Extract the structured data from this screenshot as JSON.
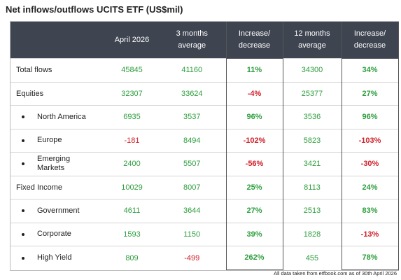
{
  "title": "Net inflows/outflows UCITS ETF (US$mil)",
  "table": {
    "header": [
      "April 2026",
      "3 months average",
      "Increase/ decrease",
      "12 months average",
      "Increase/ decrease"
    ],
    "rows": [
      {
        "label": "Total flows",
        "values": [
          45845,
          41160,
          "11%",
          34300,
          "34%"
        ]
      },
      {
        "label": "Equities",
        "values": [
          32307,
          33624,
          "-4%",
          25377,
          "27%"
        ],
        "children": [
          {
            "label": "North America",
            "values": [
              6935,
              3537,
              "96%",
              3536,
              "96%"
            ]
          },
          {
            "label": "Europe",
            "values": [
              -181,
              8494,
              "-102%",
              5823,
              "-103%"
            ]
          },
          {
            "label": "Emerging Markets",
            "values": [
              2400,
              5507,
              "-56%",
              3421,
              "-30%"
            ]
          }
        ]
      },
      {
        "label": "Fixed Income",
        "values": [
          10029,
          8007,
          "25%",
          8113,
          "24%"
        ],
        "children": [
          {
            "label": "Government",
            "values": [
              4611,
              3644,
              "27%",
              2513,
              "83%"
            ]
          },
          {
            "label": "Corporate",
            "values": [
              1593,
              1150,
              "39%",
              1828,
              "-13%"
            ]
          },
          {
            "label": "High Yield",
            "values": [
              809,
              -499,
              "262%",
              455,
              "78%"
            ]
          }
        ]
      }
    ]
  },
  "footnote": "All data taken from etfbook.com as of 30th April 2026"
}
